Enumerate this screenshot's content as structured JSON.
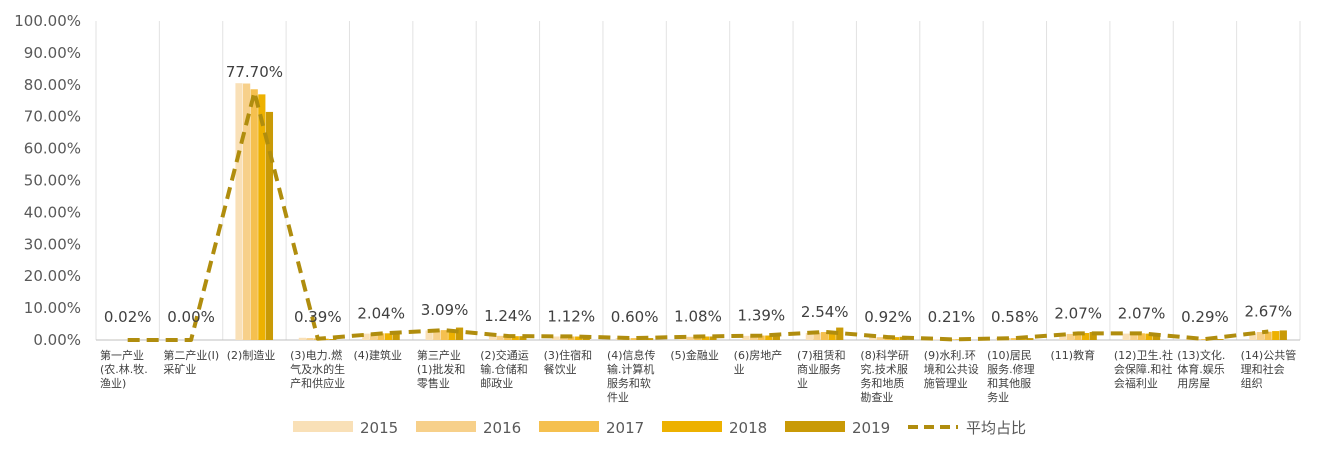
{
  "chart_data": {
    "type": "bar",
    "title": "",
    "xlabel": "",
    "ylabel": "",
    "ylim": [
      0,
      100
    ],
    "ytick_step": 10,
    "ytick_format": "percent_2dp",
    "grid": "vertical-category-separators",
    "legend_position": "bottom",
    "categories": [
      "第一产业\n(农.林.牧.\n渔业)",
      "第二产业(I)\n采矿业",
      "(2)制造业",
      "(3)电力.燃\n气及水的生\n产和供应业",
      "(4)建筑业",
      "第三产业\n(1)批发和\n零售业",
      "(2)交通运\n输.仓储和\n邮政业",
      "(3)住宿和\n餐饮业",
      "(4)信息传\n输.计算机\n服务和软\n件业",
      "(5)金融业",
      "(6)房地产\n业",
      "(7)租赁和\n商业服务\n业",
      "(8)科学研\n究.技术服\n务和地质\n勘查业",
      "(9)水利.环\n境和公共设\n施管理业",
      "(10)居民\n服务.修理\n和其他服\n务业",
      "(11)教育",
      "(12)卫生.社\n会保障.和社\n会福利业",
      "(13)文化.\n体育.娱乐\n用房屋",
      "(14)公共管\n理和社会\n组织"
    ],
    "series": [
      {
        "name": "2015",
        "color": "#F9E0B7",
        "values": [
          0.02,
          0.0,
          80.5,
          0.7,
          2.0,
          3.0,
          1.3,
          1.1,
          0.6,
          1.1,
          1.3,
          2.2,
          0.9,
          0.2,
          0.6,
          1.8,
          2.0,
          0.3,
          2.4
        ]
      },
      {
        "name": "2016",
        "color": "#F7D08A",
        "values": [
          0.02,
          0.0,
          80.4,
          0.6,
          2.0,
          3.0,
          1.3,
          1.1,
          0.6,
          1.0,
          1.4,
          2.3,
          0.9,
          0.2,
          0.6,
          1.9,
          2.1,
          0.3,
          2.5
        ]
      },
      {
        "name": "2017",
        "color": "#F5C04F",
        "values": [
          0.02,
          0.0,
          78.6,
          0.5,
          2.1,
          3.1,
          1.2,
          1.1,
          0.6,
          1.1,
          1.4,
          2.5,
          0.9,
          0.2,
          0.6,
          2.0,
          2.1,
          0.3,
          2.6
        ]
      },
      {
        "name": "2018",
        "color": "#EDB100",
        "values": [
          0.02,
          0.0,
          77.0,
          0.4,
          2.1,
          3.2,
          1.2,
          1.1,
          0.6,
          1.1,
          1.4,
          2.7,
          0.9,
          0.2,
          0.6,
          2.2,
          2.0,
          0.3,
          2.8
        ]
      },
      {
        "name": "2019",
        "color": "#C99A06",
        "values": [
          0.02,
          0.0,
          71.5,
          0.3,
          2.0,
          3.9,
          1.2,
          1.2,
          0.6,
          1.1,
          1.5,
          3.9,
          1.0,
          0.2,
          0.6,
          2.5,
          2.1,
          0.3,
          3.0
        ]
      }
    ],
    "line": {
      "name": "平均占比",
      "color": "#B08D0E",
      "style": "dashed",
      "values": [
        0.02,
        0.0,
        77.7,
        0.39,
        2.04,
        3.09,
        1.24,
        1.12,
        0.6,
        1.08,
        1.39,
        2.54,
        0.92,
        0.21,
        0.58,
        2.07,
        2.07,
        0.29,
        2.67
      ],
      "labels": [
        "0.02%",
        "0.00%",
        "77.70%",
        "0.39%",
        "2.04%",
        "3.09%",
        "1.24%",
        "1.12%",
        "0.60%",
        "1.08%",
        "1.39%",
        "2.54%",
        "0.92%",
        "0.21%",
        "0.58%",
        "2.07%",
        "2.07%",
        "0.29%",
        "2.67%"
      ]
    }
  }
}
